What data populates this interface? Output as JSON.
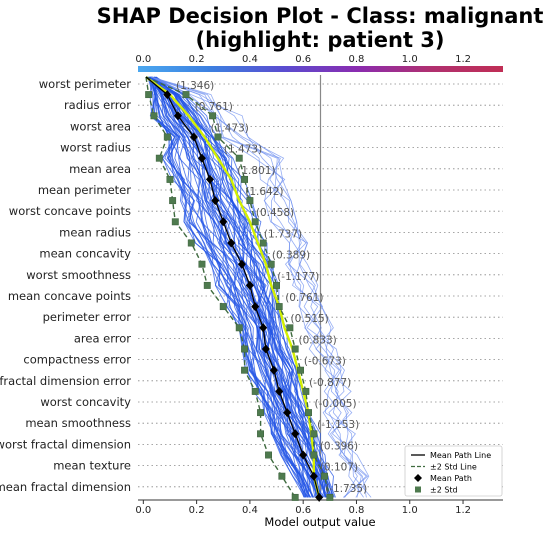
{
  "chart_data": {
    "type": "line",
    "title_line1": "SHAP Decision Plot - Class: malignant",
    "title_line2": "(highlight: patient 3)",
    "xlabel": "Model output value",
    "xlim": [
      -0.02,
      1.35
    ],
    "x_ticks": [
      "0.0",
      "0.2",
      "0.4",
      "0.6",
      "0.8",
      "1.0",
      "1.2"
    ],
    "x_tick_values": [
      0.0,
      0.2,
      0.4,
      0.6,
      0.8,
      1.0,
      1.2
    ],
    "base_value": 0.665,
    "features": [
      {
        "name": "worst perimeter",
        "value": "(1.346)"
      },
      {
        "name": "radius error",
        "value": "(0.761)"
      },
      {
        "name": "worst area",
        "value": "(1.473)"
      },
      {
        "name": "worst radius",
        "value": "(1.473)"
      },
      {
        "name": "mean area",
        "value": "(1.801)"
      },
      {
        "name": "mean perimeter",
        "value": "(1.642)"
      },
      {
        "name": "worst concave points",
        "value": "(0.458)"
      },
      {
        "name": "mean radius",
        "value": "(1.737)"
      },
      {
        "name": "mean concavity",
        "value": "(0.389)"
      },
      {
        "name": "worst smoothness",
        "value": "(-1.177)"
      },
      {
        "name": "mean concave points",
        "value": "(0.761)"
      },
      {
        "name": "perimeter error",
        "value": "(0.515)"
      },
      {
        "name": "area error",
        "value": "(0.833)"
      },
      {
        "name": "compactness error",
        "value": "(-0.673)"
      },
      {
        "name": "fractal dimension error",
        "value": "(-0.877)"
      },
      {
        "name": "worst concavity",
        "value": "(-0.005)"
      },
      {
        "name": "mean smoothness",
        "value": "(-1.153)"
      },
      {
        "name": "worst fractal dimension",
        "value": "(0.396)"
      },
      {
        "name": "mean texture",
        "value": "(0.107)"
      },
      {
        "name": "mean fractal dimension",
        "value": "(-1.735)"
      }
    ],
    "series": [
      {
        "name": "Mean Path",
        "values": [
          0.01,
          0.09,
          0.13,
          0.19,
          0.22,
          0.25,
          0.27,
          0.3,
          0.33,
          0.37,
          0.4,
          0.42,
          0.45,
          0.46,
          0.49,
          0.51,
          0.54,
          0.57,
          0.6,
          0.64,
          0.66
        ]
      },
      {
        "name": "±2 Std",
        "values": [
          0.01,
          0.02,
          0.04,
          0.09,
          0.06,
          0.1,
          0.11,
          0.12,
          0.18,
          0.22,
          0.24,
          0.3,
          0.36,
          0.38,
          0.38,
          0.42,
          0.44,
          0.44,
          0.47,
          0.52,
          0.57
        ]
      },
      {
        "name": "+2 Std",
        "values": [
          0.01,
          0.16,
          0.26,
          0.28,
          0.36,
          0.38,
          0.4,
          0.42,
          0.45,
          0.48,
          0.5,
          0.51,
          0.55,
          0.57,
          0.59,
          0.61,
          0.62,
          0.64,
          0.64,
          0.68,
          0.7
        ]
      },
      {
        "name": "highlight",
        "values": [
          0.01,
          0.1,
          0.17,
          0.23,
          0.28,
          0.33,
          0.36,
          0.4,
          0.43,
          0.46,
          0.48,
          0.51,
          0.53,
          0.56,
          0.58,
          0.6,
          0.62,
          0.63,
          0.64,
          0.64,
          0.66
        ]
      }
    ],
    "legend": {
      "position": "lower-right",
      "items": [
        "Mean Path Line",
        "±2 Std Line",
        "Mean Path",
        "±2 Std"
      ]
    },
    "colors": {
      "mean": "#000000",
      "std": "#3f6b3f",
      "paths": "#2456e6",
      "highlight": "#d4f000",
      "base_line": "#888888"
    },
    "colorbar": [
      "#4ba8f0",
      "#3c7fe0",
      "#5a4cd0",
      "#8a2cb0",
      "#b03070",
      "#c02e55"
    ]
  }
}
